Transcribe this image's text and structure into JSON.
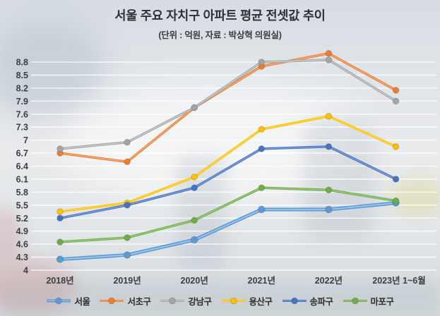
{
  "title": "서울 주요 자치구 아파트 평균 전셋값 추이",
  "subtitle": "(단위 : 억원, 자료 : 박상혁 의원실)",
  "chart_data": {
    "type": "line",
    "title": "서울 주요 자치구 아파트 평균 전셋값 추이",
    "subtitle": "(단위 : 억원, 자료 : 박상혁 의원실)",
    "unit": "억원",
    "source": "박상혁 의원실",
    "categories": [
      "2018년",
      "2019년",
      "2020년",
      "2021년",
      "2022년",
      "2023년 1~6월"
    ],
    "series": [
      {
        "name": "서울",
        "color": "#5B9BD5",
        "color_light": "#a3c8ea",
        "emphasis": true,
        "values": [
          4.25,
          4.35,
          4.7,
          5.4,
          5.4,
          5.55
        ]
      },
      {
        "name": "서초구",
        "color": "#ED7D31",
        "color_light": "#f6b183",
        "emphasis": false,
        "values": [
          6.7,
          6.5,
          7.75,
          8.7,
          9.0,
          8.15
        ]
      },
      {
        "name": "강남구",
        "color": "#A5A5A5",
        "color_light": "#cfcfcf",
        "emphasis": false,
        "values": [
          6.8,
          6.95,
          7.75,
          8.8,
          8.85,
          7.9
        ]
      },
      {
        "name": "용산구",
        "color": "#FFC000",
        "color_light": "#ffd966",
        "emphasis": false,
        "values": [
          5.35,
          5.55,
          6.15,
          7.25,
          7.55,
          6.85
        ]
      },
      {
        "name": "송파구",
        "color": "#4472C4",
        "color_light": "#8aa5dc",
        "emphasis": false,
        "values": [
          5.2,
          5.5,
          5.9,
          6.8,
          6.85,
          6.1
        ]
      },
      {
        "name": "마포구",
        "color": "#70AD47",
        "color_light": "#a5cc8a",
        "emphasis": false,
        "values": [
          4.65,
          4.75,
          5.15,
          5.9,
          5.85,
          5.6
        ]
      }
    ],
    "ylim": [
      4,
      8.8
    ],
    "ytick_step": 0.3,
    "ytick_labels": [
      "4",
      "4.3",
      "4.6",
      "4.9",
      "5.2",
      "5.5",
      "5.8",
      "6.1",
      "6.4",
      "6.7",
      "7",
      "7.3",
      "7.6",
      "7.9",
      "8.2",
      "8.5",
      "8.8"
    ],
    "grid": "horizontal",
    "legend_position": "bottom"
  }
}
